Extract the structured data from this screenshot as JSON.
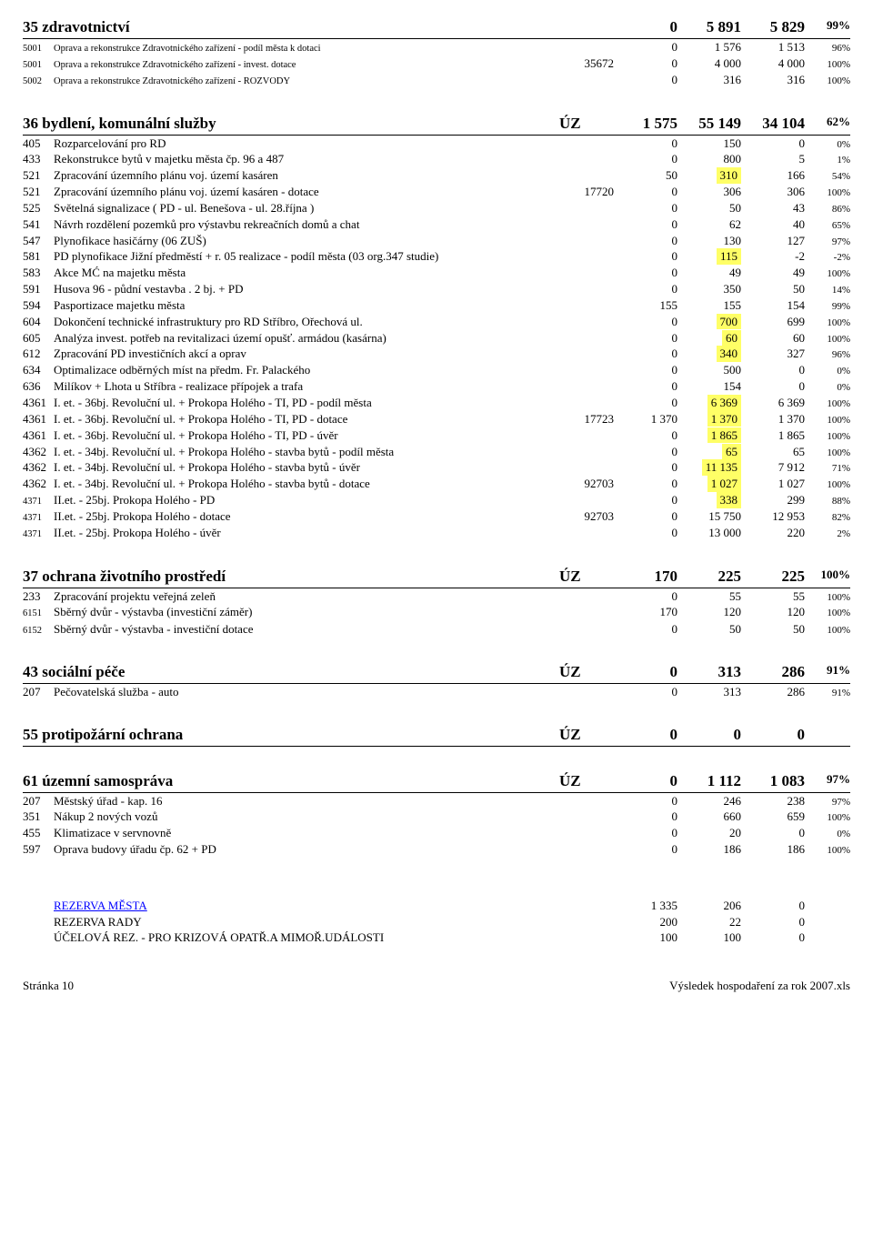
{
  "highlight_color": "#ffff66",
  "sections": [
    {
      "title": "35 zdravotnictví",
      "uz": "",
      "c1": "0",
      "c2": "5 891",
      "c3": "5 829",
      "c4": "99%",
      "rows": [
        {
          "code": "5001",
          "desc": "Oprava a rekonstrukce Zdravotnického zařízení - podíl města k dotaci",
          "uz": "",
          "c1": "0",
          "c2": "1 576",
          "c3": "1 513",
          "c4": "96%",
          "small": true
        },
        {
          "code": "5001",
          "desc": "Oprava a rekonstrukce Zdravotnického zařízení - invest. dotace",
          "uz": "35672",
          "c1": "0",
          "c2": "4 000",
          "c3": "4 000",
          "c4": "100%",
          "small": true
        },
        {
          "code": "5002",
          "desc": "Oprava a rekonstrukce Zdravotnického zařízení - ROZVODY",
          "uz": "",
          "c1": "0",
          "c2": "316",
          "c3": "316",
          "c4": "100%",
          "small": true
        }
      ]
    },
    {
      "title": "36 bydlení, komunální služby",
      "uz": "ÚZ",
      "c1": "1 575",
      "c2": "55 149",
      "c3": "34 104",
      "c4": "62%",
      "rows": [
        {
          "code": "405",
          "desc": "Rozparcelování pro RD",
          "uz": "",
          "c1": "0",
          "c2": "150",
          "c3": "0",
          "c4": "0%"
        },
        {
          "code": "433",
          "desc": "Rekonstrukce bytů v majetku města čp. 96 a 487",
          "uz": "",
          "c1": "0",
          "c2": "800",
          "c3": "5",
          "c4": "1%"
        },
        {
          "code": "521",
          "desc": "Zpracování územního plánu voj. území kasáren",
          "uz": "",
          "c1": "50",
          "c2": "310",
          "c2hl": true,
          "c3": "166",
          "c4": "54%"
        },
        {
          "code": "521",
          "desc": "Zpracování územního plánu voj. území kasáren - dotace",
          "uz": "17720",
          "c1": "0",
          "c2": "306",
          "c3": "306",
          "c4": "100%"
        },
        {
          "code": "525",
          "desc": "Světelná signalizace ( PD - ul. Benešova - ul. 28.října )",
          "uz": "",
          "c1": "0",
          "c2": "50",
          "c3": "43",
          "c4": "86%"
        },
        {
          "code": "541",
          "desc": "Návrh rozdělení pozemků pro výstavbu rekreačních domů a chat",
          "uz": "",
          "c1": "0",
          "c2": "62",
          "c3": "40",
          "c4": "65%"
        },
        {
          "code": "547",
          "desc": "Plynofikace hasičárny (06 ZUŠ)",
          "uz": "",
          "c1": "0",
          "c2": "130",
          "c3": "127",
          "c4": "97%"
        },
        {
          "code": "581",
          "desc": "PD plynofikace Jižní předměstí + r. 05 realizace - podíl města (03 org.347 studie)",
          "uz": "",
          "c1": "0",
          "c2": "115",
          "c2hl": true,
          "c3": "-2",
          "c4": "-2%"
        },
        {
          "code": "583",
          "desc": "Akce MĆ na majetku města",
          "uz": "",
          "c1": "0",
          "c2": "49",
          "c3": "49",
          "c4": "100%"
        },
        {
          "code": "591",
          "desc": "Husova 96 - půdní vestavba . 2 bj. + PD",
          "uz": "",
          "c1": "0",
          "c2": "350",
          "c3": "50",
          "c4": "14%"
        },
        {
          "code": "594",
          "desc": "Pasportizace majetku města",
          "uz": "",
          "c1": "155",
          "c2": "155",
          "c3": "154",
          "c4": "99%"
        },
        {
          "code": "604",
          "desc": "Dokončení technické infrastruktury pro RD Stříbro, Ořechová ul.",
          "uz": "",
          "c1": "0",
          "c2": "700",
          "c2hl": true,
          "c3": "699",
          "c4": "100%"
        },
        {
          "code": "605",
          "desc": "Analýza invest. potřeb na revitalizaci území opušť. armádou (kasárna)",
          "uz": "",
          "c1": "0",
          "c2": "60",
          "c2hl": true,
          "c3": "60",
          "c4": "100%"
        },
        {
          "code": "612",
          "desc": "Zpracování PD investičních akcí a oprav",
          "uz": "",
          "c1": "0",
          "c2": "340",
          "c2hl": true,
          "c3": "327",
          "c4": "96%"
        },
        {
          "code": "634",
          "desc": "Optimalizace odběrných míst na předm. Fr. Palackého",
          "uz": "",
          "c1": "0",
          "c2": "500",
          "c3": "0",
          "c4": "0%"
        },
        {
          "code": "636",
          "desc": "Milíkov + Lhota u Stříbra - realizace přípojek a trafa",
          "uz": "",
          "c1": "0",
          "c2": "154",
          "c3": "0",
          "c4": "0%"
        },
        {
          "code": "4361",
          "desc": "I. et. - 36bj. Revoluční ul. + Prokopa Holého - TI, PD - podíl města",
          "uz": "",
          "c1": "0",
          "c2": "6 369",
          "c2hl": true,
          "c3": "6 369",
          "c4": "100%"
        },
        {
          "code": "4361",
          "desc": "I. et. - 36bj. Revoluční ul. + Prokopa Holého - TI, PD - dotace",
          "uz": "17723",
          "c1": "1 370",
          "c2": "1 370",
          "c2hl": true,
          "c3": "1 370",
          "c4": "100%"
        },
        {
          "code": "4361",
          "desc": "I. et. - 36bj. Revoluční ul. + Prokopa Holého - TI, PD - úvěr",
          "uz": "",
          "c1": "0",
          "c2": "1 865",
          "c2hl": true,
          "c3": "1 865",
          "c4": "100%"
        },
        {
          "code": "4362",
          "desc": "I. et. - 34bj. Revoluční ul. + Prokopa Holého - stavba bytů - podíl města",
          "uz": "",
          "c1": "0",
          "c2": "65",
          "c2hl": true,
          "c3": "65",
          "c4": "100%"
        },
        {
          "code": "4362",
          "desc": "I. et. - 34bj. Revoluční ul. + Prokopa Holého - stavba bytů - úvěr",
          "uz": "",
          "c1": "0",
          "c2": "11 135",
          "c2hl": true,
          "c3": "7 912",
          "c4": "71%"
        },
        {
          "code": "4362",
          "desc": "I. et. - 34bj. Revoluční ul. + Prokopa Holého - stavba bytů - dotace",
          "uz": "92703",
          "c1": "0",
          "c2": "1 027",
          "c2hl": true,
          "c3": "1 027",
          "c4": "100%"
        },
        {
          "code": "4371",
          "desc": "II.et. - 25bj. Prokopa Holého - PD",
          "uz": "",
          "c1": "0",
          "c2": "338",
          "c2hl": true,
          "c3": "299",
          "c4": "88%",
          "codesm": true
        },
        {
          "code": "4371",
          "desc": "II.et. - 25bj. Prokopa Holého - dotace",
          "uz": "92703",
          "c1": "0",
          "c2": "15 750",
          "c3": "12 953",
          "c4": "82%",
          "codesm": true
        },
        {
          "code": "4371",
          "desc": "II.et. - 25bj. Prokopa Holého - úvěr",
          "uz": "",
          "c1": "0",
          "c2": "13 000",
          "c3": "220",
          "c4": "2%",
          "codesm": true
        }
      ]
    },
    {
      "title": "37 ochrana životního prostředí",
      "uz": "ÚZ",
      "c1": "170",
      "c2": "225",
      "c3": "225",
      "c4": "100%",
      "rows": [
        {
          "code": "233",
          "desc": "Zpracování projektu veřejná zeleň",
          "uz": "",
          "c1": "0",
          "c2": "55",
          "c3": "55",
          "c4": "100%"
        },
        {
          "code": "6151",
          "desc": "Sběrný dvůr - výstavba (investiční záměr)",
          "uz": "",
          "c1": "170",
          "c2": "120",
          "c3": "120",
          "c4": "100%",
          "codesm": true
        },
        {
          "code": "6152",
          "desc": "Sběrný dvůr - výstavba - investiční dotace",
          "uz": "",
          "c1": "0",
          "c2": "50",
          "c3": "50",
          "c4": "100%",
          "codesm": true
        }
      ]
    },
    {
      "title": "43 sociální péče",
      "uz": "ÚZ",
      "c1": "0",
      "c2": "313",
      "c3": "286",
      "c4": "91%",
      "rows": [
        {
          "code": "207",
          "desc": "Pečovatelská služba - auto",
          "uz": "",
          "c1": "0",
          "c2": "313",
          "c3": "286",
          "c4": "91%"
        }
      ]
    },
    {
      "title": "55 protipožární ochrana",
      "uz": "ÚZ",
      "c1": "0",
      "c2": "0",
      "c3": "0",
      "c4": "",
      "rows": []
    },
    {
      "title": "61 územní samospráva",
      "uz": "ÚZ",
      "c1": "0",
      "c2": "1 112",
      "c3": "1 083",
      "c4": "97%",
      "rows": [
        {
          "code": "207",
          "desc": "Městský úřad - kap. 16",
          "uz": "",
          "c1": "0",
          "c2": "246",
          "c3": "238",
          "c4": "97%"
        },
        {
          "code": "351",
          "desc": "Nákup 2 nových vozů",
          "uz": "",
          "c1": "0",
          "c2": "660",
          "c3": "659",
          "c4": "100%"
        },
        {
          "code": "455",
          "desc": "Klimatizace v servnovně",
          "uz": "",
          "c1": "0",
          "c2": "20",
          "c3": "0",
          "c4": "0%"
        },
        {
          "code": "597",
          "desc": "Oprava budovy úřadu čp. 62 + PD",
          "uz": "",
          "c1": "0",
          "c2": "186",
          "c3": "186",
          "c4": "100%"
        }
      ]
    }
  ],
  "reserves": [
    {
      "label": "REZERVA MĚSTA",
      "c1": "1 335",
      "c2": "206",
      "c3": "0",
      "blue": true
    },
    {
      "label": "REZERVA RADY",
      "c1": "200",
      "c2": "22",
      "c3": "0"
    },
    {
      "label": "ÚČELOVÁ REZ. - PRO KRIZOVÁ OPATŘ.A MIMOŘ.UDÁLOSTI",
      "c1": "100",
      "c2": "100",
      "c3": "0"
    }
  ],
  "footer": {
    "left": "Stránka 10",
    "right": "Výsledek hospodaření za rok 2007.xls"
  }
}
